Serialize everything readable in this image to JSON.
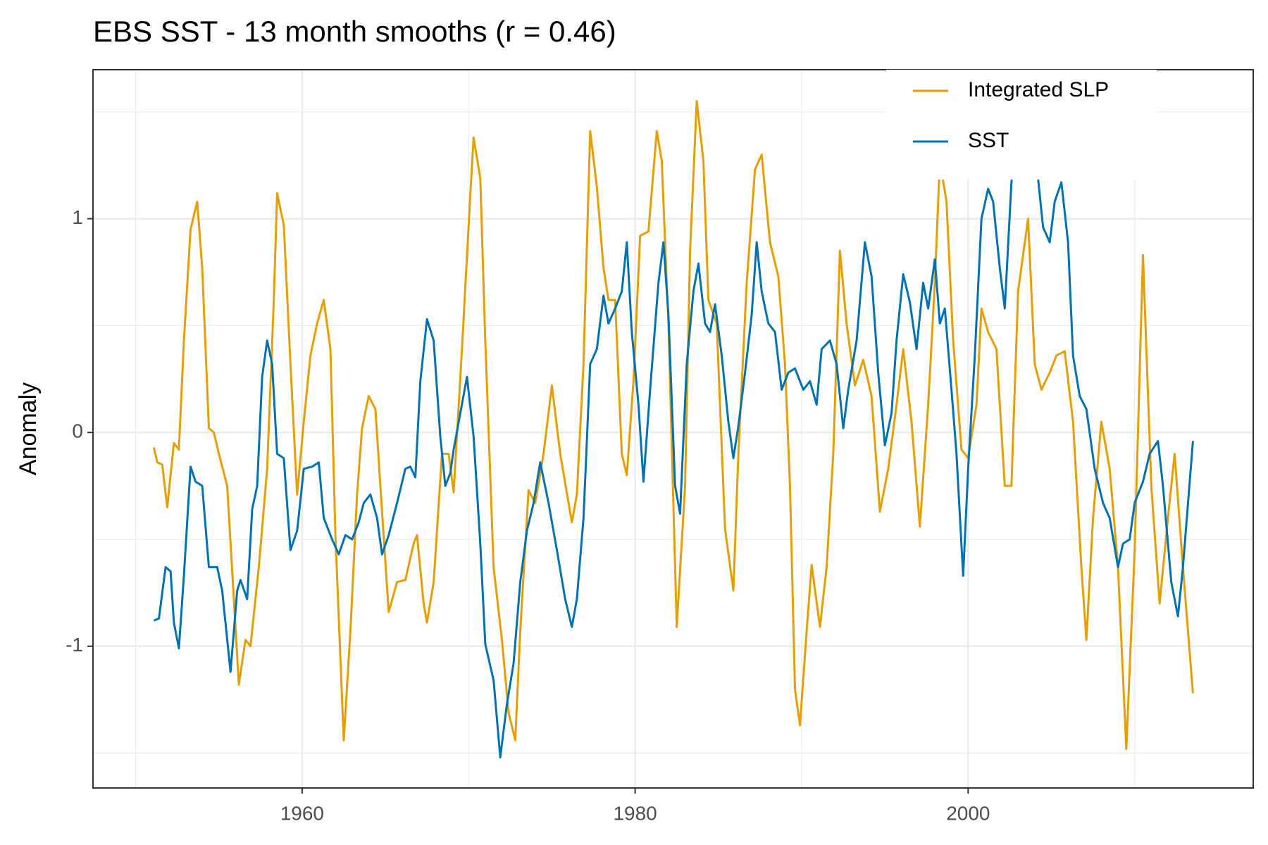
{
  "chart_data": {
    "type": "line",
    "title": "EBS SST - 13 month smooths (r = 0.46)",
    "y_label": "Anomaly",
    "xlim": [
      1947.44,
      2017.12
    ],
    "ylim": [
      -1.663,
      1.697
    ],
    "xticks": [
      1960,
      1980,
      2000
    ],
    "yticks": [
      -1,
      0,
      1
    ],
    "x_minor_grid": [
      1950,
      1970,
      1990,
      2010
    ],
    "y_minor_grid": [
      -1.5,
      -0.5,
      0.5,
      1.5
    ],
    "grid": true,
    "legend": "top-right",
    "series": [
      {
        "name": "Integrated SLP",
        "color": "#E69F00",
        "x": [
          1951.1,
          1951.3,
          1951.6,
          1951.9,
          1952.3,
          1952.6,
          1952.9,
          1953.3,
          1953.7,
          1954.0,
          1954.4,
          1954.7,
          1955.0,
          1955.5,
          1955.9,
          1956.2,
          1956.6,
          1956.9,
          1957.4,
          1957.9,
          1958.3,
          1958.5,
          1958.9,
          1959.3,
          1959.7,
          1960.1,
          1960.5,
          1960.9,
          1961.3,
          1961.7,
          1962.0,
          1962.5,
          1962.9,
          1963.3,
          1963.6,
          1964.0,
          1964.4,
          1964.7,
          1965.2,
          1965.7,
          1966.2,
          1966.7,
          1966.9,
          1967.3,
          1967.5,
          1967.9,
          1968.4,
          1968.8,
          1969.1,
          1969.6,
          1970.1,
          1970.3,
          1970.7,
          1971.0,
          1971.5,
          1972.0,
          1972.4,
          1972.8,
          1973.1,
          1973.6,
          1974.0,
          1974.5,
          1975.0,
          1975.5,
          1976.2,
          1976.5,
          1976.9,
          1977.3,
          1977.7,
          1978.1,
          1978.4,
          1978.8,
          1979.2,
          1979.5,
          1979.9,
          1980.3,
          1980.8,
          1981.3,
          1981.6,
          1982.0,
          1982.5,
          1983.0,
          1983.3,
          1983.7,
          1984.1,
          1984.4,
          1984.9,
          1985.4,
          1985.9,
          1986.2,
          1986.7,
          1987.2,
          1987.6,
          1988.1,
          1988.6,
          1989.0,
          1989.3,
          1989.6,
          1989.9,
          1990.3,
          1990.6,
          1991.1,
          1991.5,
          1991.9,
          1992.3,
          1992.7,
          1993.2,
          1993.7,
          1994.2,
          1994.7,
          1995.2,
          1995.7,
          1996.1,
          1996.6,
          1997.1,
          1997.6,
          1998.0,
          1998.3,
          1998.7,
          1999.1,
          1999.6,
          2000.0,
          2000.5,
          2000.8,
          2001.2,
          2001.7,
          2002.2,
          2002.6,
          2003.0,
          2003.6,
          2004.0,
          2004.4,
          2004.9,
          2005.3,
          2005.8,
          2006.3,
          2006.8,
          2007.1,
          2007.5,
          2008.0,
          2008.5,
          2009.0,
          2009.5,
          2010.0,
          2010.5,
          2011.0,
          2011.5,
          2012.0,
          2012.4,
          2012.9,
          2013.5
        ],
        "values": [
          -0.07,
          -0.14,
          -0.15,
          -0.35,
          -0.05,
          -0.08,
          0.43,
          0.95,
          1.08,
          0.77,
          0.02,
          0,
          -0.1,
          -0.25,
          -0.78,
          -1.18,
          -0.97,
          -1.0,
          -0.63,
          -0.17,
          0.62,
          1.12,
          0.97,
          0.32,
          -0.29,
          0.05,
          0.36,
          0.51,
          0.62,
          0.39,
          -0.48,
          -1.44,
          -0.93,
          -0.29,
          0.02,
          0.17,
          0.11,
          -0.25,
          -0.84,
          -0.7,
          -0.69,
          -0.52,
          -0.48,
          -0.8,
          -0.89,
          -0.7,
          -0.1,
          -0.1,
          -0.28,
          0.39,
          1.11,
          1.38,
          1.19,
          0.43,
          -0.63,
          -0.97,
          -1.31,
          -1.44,
          -0.93,
          -0.27,
          -0.33,
          -0.1,
          0.22,
          -0.1,
          -0.42,
          -0.29,
          0.32,
          1.41,
          1.15,
          0.77,
          0.62,
          0.62,
          -0.1,
          -0.2,
          0.24,
          0.92,
          0.94,
          1.41,
          1.27,
          0.51,
          -0.91,
          -0.25,
          0.85,
          1.55,
          1.27,
          0.62,
          0.51,
          -0.45,
          -0.74,
          -0.1,
          0.7,
          1.23,
          1.3,
          0.89,
          0.73,
          0.32,
          -0.25,
          -1.2,
          -1.37,
          -0.93,
          -0.62,
          -0.91,
          -0.63,
          -0.1,
          0.85,
          0.51,
          0.22,
          0.34,
          0.17,
          -0.37,
          -0.17,
          0.13,
          0.39,
          0.05,
          -0.44,
          0.13,
          0.7,
          1.27,
          1.08,
          0.43,
          -0.08,
          -0.12,
          0.13,
          0.58,
          0.47,
          0.39,
          -0.25,
          -0.25,
          0.66,
          1.0,
          0.32,
          0.2,
          0.28,
          0.36,
          0.38,
          0.05,
          -0.63,
          -0.97,
          -0.4,
          0.05,
          -0.17,
          -0.63,
          -1.48,
          -0.55,
          0.83,
          -0.25,
          -0.8,
          -0.4,
          -0.1,
          -0.63,
          -1.22
        ]
      },
      {
        "name": "SST",
        "color": "#0072B2",
        "x": [
          1951.1,
          1951.4,
          1951.8,
          1952.1,
          1952.3,
          1952.6,
          1952.9,
          1953.3,
          1953.6,
          1954.0,
          1954.4,
          1954.9,
          1955.2,
          1955.7,
          1956.1,
          1956.3,
          1956.7,
          1957.0,
          1957.3,
          1957.6,
          1957.9,
          1958.2,
          1958.5,
          1958.9,
          1959.3,
          1959.7,
          1960.1,
          1960.6,
          1961.0,
          1961.3,
          1961.8,
          1962.2,
          1962.6,
          1963.0,
          1963.4,
          1963.7,
          1964.1,
          1964.5,
          1964.8,
          1965.2,
          1965.7,
          1966.2,
          1966.5,
          1966.8,
          1967.1,
          1967.5,
          1967.9,
          1968.3,
          1968.6,
          1968.9,
          1969.1,
          1969.5,
          1969.9,
          1970.3,
          1970.7,
          1971.0,
          1971.5,
          1971.9,
          1972.3,
          1972.7,
          1973.1,
          1973.5,
          1973.9,
          1974.3,
          1974.8,
          1975.3,
          1975.8,
          1976.2,
          1976.5,
          1976.9,
          1977.3,
          1977.7,
          1978.1,
          1978.4,
          1978.8,
          1979.2,
          1979.5,
          1979.8,
          1980.2,
          1980.5,
          1980.9,
          1981.4,
          1981.7,
          1982.0,
          1982.4,
          1982.7,
          1983.1,
          1983.5,
          1983.8,
          1984.2,
          1984.5,
          1984.8,
          1985.2,
          1985.6,
          1985.9,
          1986.2,
          1986.6,
          1987.0,
          1987.3,
          1987.6,
          1988.0,
          1988.4,
          1988.8,
          1989.2,
          1989.6,
          1990.1,
          1990.5,
          1990.9,
          1991.2,
          1991.7,
          1992.1,
          1992.5,
          1992.8,
          1993.3,
          1993.8,
          1994.2,
          1994.6,
          1995.0,
          1995.4,
          1995.7,
          1996.1,
          1996.5,
          1996.9,
          1997.3,
          1997.6,
          1998.0,
          1998.3,
          1998.6,
          1999.0,
          1999.3,
          1999.7,
          2000.0,
          2000.4,
          2000.8,
          2001.2,
          2001.5,
          2001.9,
          2002.2,
          2002.6,
          2003.0,
          2003.5,
          2004.0,
          2004.5,
          2004.9,
          2005.2,
          2005.6,
          2006.0,
          2006.3,
          2006.7,
          2007.1,
          2007.6,
          2008.1,
          2008.5,
          2009.0,
          2009.3,
          2009.7,
          2010.0,
          2010.5,
          2010.9,
          2011.4,
          2011.7,
          2012.2,
          2012.6,
          2012.9,
          2013.5
        ],
        "values": [
          -0.88,
          -0.87,
          -0.63,
          -0.65,
          -0.89,
          -1.01,
          -0.67,
          -0.16,
          -0.23,
          -0.25,
          -0.63,
          -0.63,
          -0.74,
          -1.12,
          -0.74,
          -0.69,
          -0.78,
          -0.36,
          -0.25,
          0.26,
          0.43,
          0.32,
          -0.1,
          -0.12,
          -0.55,
          -0.46,
          -0.17,
          -0.16,
          -0.14,
          -0.4,
          -0.5,
          -0.57,
          -0.48,
          -0.5,
          -0.42,
          -0.33,
          -0.29,
          -0.4,
          -0.57,
          -0.48,
          -0.33,
          -0.17,
          -0.16,
          -0.21,
          0.24,
          0.53,
          0.43,
          -0.02,
          -0.25,
          -0.19,
          -0.08,
          0.09,
          0.26,
          -0.02,
          -0.52,
          -0.99,
          -1.16,
          -1.52,
          -1.27,
          -1.08,
          -0.7,
          -0.46,
          -0.33,
          -0.14,
          -0.33,
          -0.55,
          -0.78,
          -0.91,
          -0.78,
          -0.4,
          0.32,
          0.39,
          0.64,
          0.51,
          0.58,
          0.66,
          0.89,
          0.47,
          0.13,
          -0.23,
          0.2,
          0.7,
          0.89,
          0.55,
          -0.25,
          -0.38,
          0.32,
          0.66,
          0.79,
          0.51,
          0.47,
          0.6,
          0.36,
          0.05,
          -0.12,
          0.03,
          0.28,
          0.55,
          0.89,
          0.66,
          0.51,
          0.47,
          0.2,
          0.28,
          0.3,
          0.2,
          0.24,
          0.13,
          0.39,
          0.43,
          0.32,
          0.02,
          0.2,
          0.43,
          0.89,
          0.73,
          0.28,
          -0.06,
          0.09,
          0.43,
          0.74,
          0.61,
          0.39,
          0.7,
          0.58,
          0.81,
          0.51,
          0.58,
          0.2,
          -0.1,
          -0.67,
          -0.17,
          0.36,
          1.0,
          1.14,
          1.08,
          0.77,
          0.58,
          1.17,
          1.42,
          1.57,
          1.34,
          0.96,
          0.89,
          1.08,
          1.17,
          0.89,
          0.36,
          0.17,
          0.11,
          -0.17,
          -0.33,
          -0.4,
          -0.63,
          -0.52,
          -0.5,
          -0.33,
          -0.23,
          -0.1,
          -0.04,
          -0.25,
          -0.7,
          -0.86,
          -0.63,
          -0.04
        ]
      }
    ]
  }
}
